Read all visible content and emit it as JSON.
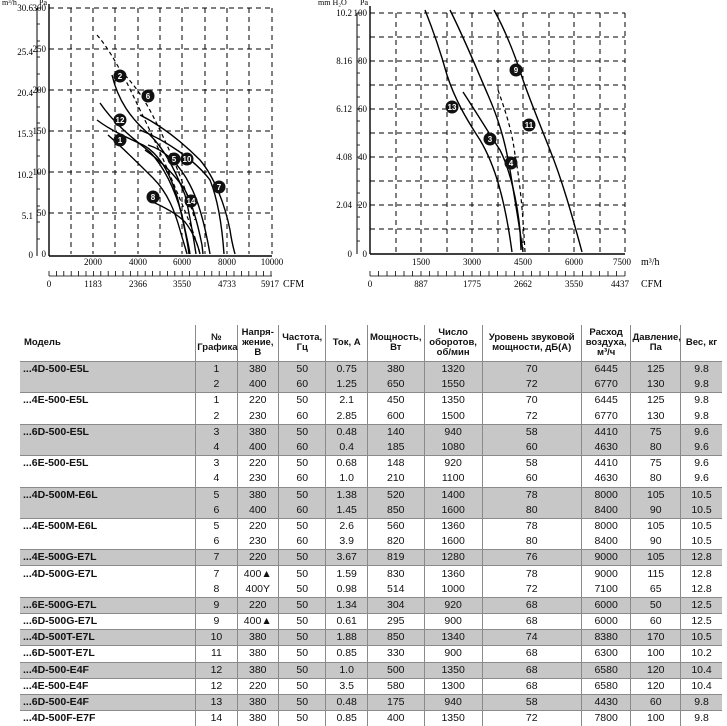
{
  "charts": [
    {
      "y_label_top_left": "m³/h",
      "y_label_top_right": "Pa",
      "left_axis_ticks": [
        "30.6",
        "25.4",
        "20.4",
        "15.3",
        "10.2",
        "5.1",
        "0"
      ],
      "right_axis_ticks": [
        "300",
        "250",
        "200",
        "150",
        "100",
        "50",
        "0"
      ],
      "x_m3h_ticks": [
        "2000",
        "4000",
        "6000",
        "8000",
        "10000"
      ],
      "x_cfm_ticks": [
        "0",
        "1183",
        "2366",
        "3550",
        "4733",
        "5917"
      ],
      "x_unit": "CFM",
      "curve_labels": [
        "2",
        "6",
        "12",
        "1",
        "5",
        "10",
        "7",
        "8",
        "14"
      ]
    },
    {
      "y_label_top_left": "mm H₂O",
      "y_label_top_right": "Pa",
      "left_axis_ticks": [
        "10.2",
        "8.16",
        "6.12",
        "4.08",
        "2.04",
        "0"
      ],
      "right_axis_ticks": [
        "100",
        "80",
        "60",
        "40",
        "20",
        "0"
      ],
      "x_m3h_ticks": [
        "1500",
        "3000",
        "4500",
        "6000",
        "7500"
      ],
      "x_cfm_ticks": [
        "0",
        "887",
        "1775",
        "2662",
        "3550",
        "4437"
      ],
      "x_unit": "CFM",
      "x_unit_top": "m³/h",
      "curve_labels": [
        "9",
        "13",
        "11",
        "3",
        "4"
      ]
    }
  ],
  "table": {
    "headers": [
      "Модель",
      "№ Графика",
      "Напря-жение, В",
      "Частота, Гц",
      "Ток, А",
      "Мощность, Вт",
      "Число оборотов, об/мин",
      "Уровень звуковой мощности, дБ(А)",
      "Расход воздуха, м³/ч",
      "Давление, Па",
      "Вес, кг"
    ],
    "groups": [
      {
        "model": "...4D-500-E5L",
        "shade": true,
        "rows": [
          [
            "1",
            "380",
            "50",
            "0.75",
            "380",
            "1320",
            "70",
            "6445",
            "125",
            "9.8"
          ],
          [
            "2",
            "400",
            "60",
            "1.25",
            "650",
            "1550",
            "72",
            "6770",
            "130",
            "9.8"
          ]
        ]
      },
      {
        "model": "...4E-500-E5L",
        "shade": false,
        "rows": [
          [
            "1",
            "220",
            "50",
            "2.1",
            "450",
            "1350",
            "70",
            "6445",
            "125",
            "9.8"
          ],
          [
            "2",
            "230",
            "60",
            "2.85",
            "600",
            "1500",
            "72",
            "6770",
            "130",
            "9.8"
          ]
        ]
      },
      {
        "model": "...6D-500-E5L",
        "shade": true,
        "rows": [
          [
            "3",
            "380",
            "50",
            "0.48",
            "140",
            "940",
            "58",
            "4410",
            "75",
            "9.6"
          ],
          [
            "4",
            "400",
            "60",
            "0.4",
            "185",
            "1080",
            "60",
            "4630",
            "80",
            "9.6"
          ]
        ]
      },
      {
        "model": "...6E-500-E5L",
        "shade": false,
        "rows": [
          [
            "3",
            "220",
            "50",
            "0.68",
            "148",
            "920",
            "58",
            "4410",
            "75",
            "9.6"
          ],
          [
            "4",
            "230",
            "60",
            "1.0",
            "210",
            "1100",
            "60",
            "4630",
            "80",
            "9.6"
          ]
        ]
      },
      {
        "model": "...4D-500M-E6L",
        "shade": true,
        "rows": [
          [
            "5",
            "380",
            "50",
            "1.38",
            "520",
            "1400",
            "78",
            "8000",
            "105",
            "10.5"
          ],
          [
            "6",
            "400",
            "60",
            "1.45",
            "850",
            "1600",
            "80",
            "8400",
            "90",
            "10.5"
          ]
        ]
      },
      {
        "model": "...4E-500M-E6L",
        "shade": false,
        "rows": [
          [
            "5",
            "220",
            "50",
            "2.6",
            "560",
            "1360",
            "78",
            "8000",
            "105",
            "10.5"
          ],
          [
            "6",
            "230",
            "60",
            "3.9",
            "820",
            "1600",
            "80",
            "8400",
            "90",
            "10.5"
          ]
        ]
      },
      {
        "model": "...4E-500G-E7L",
        "shade": true,
        "rows": [
          [
            "7",
            "220",
            "50",
            "3.67",
            "819",
            "1280",
            "76",
            "9000",
            "105",
            "12.8"
          ]
        ]
      },
      {
        "model": "...4D-500G-E7L",
        "shade": false,
        "rows": [
          [
            "7",
            "400▲",
            "50",
            "1.59",
            "830",
            "1360",
            "78",
            "9000",
            "115",
            "12.8"
          ],
          [
            "8",
            "400Y",
            "50",
            "0.98",
            "514",
            "1000",
            "72",
            "7100",
            "65",
            "12.8"
          ]
        ]
      },
      {
        "model": "...6E-500G-E7L",
        "shade": true,
        "rows": [
          [
            "9",
            "220",
            "50",
            "1.34",
            "304",
            "920",
            "68",
            "6000",
            "50",
            "12.5"
          ]
        ]
      },
      {
        "model": "...6D-500G-E7L",
        "shade": false,
        "rows": [
          [
            "9",
            "400▲",
            "50",
            "0.61",
            "295",
            "900",
            "68",
            "6000",
            "60",
            "12.5"
          ]
        ]
      },
      {
        "model": "...4D-500T-E7L",
        "shade": true,
        "rows": [
          [
            "10",
            "380",
            "50",
            "1.88",
            "850",
            "1340",
            "74",
            "8380",
            "170",
            "10.5"
          ]
        ]
      },
      {
        "model": "...6D-500T-E7L",
        "shade": false,
        "rows": [
          [
            "11",
            "380",
            "50",
            "0.85",
            "330",
            "900",
            "68",
            "6300",
            "100",
            "10.2"
          ]
        ]
      },
      {
        "model": "...4D-500-E4F",
        "shade": true,
        "rows": [
          [
            "12",
            "380",
            "50",
            "1.0",
            "500",
            "1350",
            "68",
            "6580",
            "120",
            "10.4"
          ]
        ]
      },
      {
        "model": "...4E-500-E4F",
        "shade": false,
        "rows": [
          [
            "12",
            "220",
            "50",
            "3.5",
            "580",
            "1300",
            "68",
            "6580",
            "120",
            "10.4"
          ]
        ]
      },
      {
        "model": "...6D-500-E4F",
        "shade": true,
        "rows": [
          [
            "13",
            "380",
            "50",
            "0.48",
            "175",
            "940",
            "58",
            "4430",
            "60",
            "9.8"
          ]
        ]
      },
      {
        "model": "...4D-500F-E7F",
        "shade": false,
        "rows": [
          [
            "14",
            "380",
            "50",
            "0.85",
            "400",
            "1350",
            "72",
            "7800",
            "100",
            "9.8"
          ]
        ]
      }
    ]
  }
}
